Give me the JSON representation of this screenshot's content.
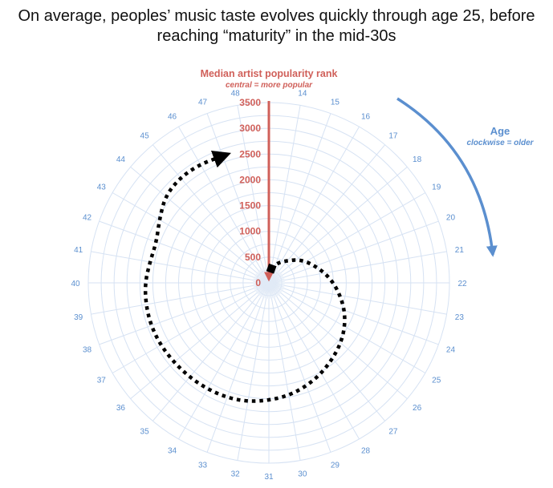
{
  "chart_data": {
    "type": "line",
    "subtype": "polar-spiral",
    "title": "On average, peoples’ music taste evolves quickly through age 25, before reaching “maturity” in the mid-30s",
    "radial_axis": {
      "label": "Median artist popularity rank",
      "sublabel": "central = more popular",
      "ticks": [
        0,
        500,
        1000,
        1500,
        2000,
        2500,
        3000,
        3500
      ],
      "range": [
        0,
        3500
      ],
      "color": "#d0605a"
    },
    "angular_axis": {
      "label": "Age",
      "sublabel": "clockwise = older",
      "ticks": [
        14,
        15,
        16,
        17,
        18,
        19,
        20,
        21,
        22,
        23,
        24,
        25,
        26,
        27,
        28,
        29,
        30,
        31,
        32,
        33,
        34,
        35,
        36,
        37,
        38,
        39,
        40,
        41,
        42,
        43,
        44,
        45,
        46,
        47,
        48
      ],
      "color": "#5b8fcf"
    },
    "grid": true,
    "series": [
      {
        "x": [
          14,
          15,
          16,
          17,
          18,
          19,
          20,
          21,
          22,
          23,
          24,
          25,
          26,
          27,
          28,
          29,
          30,
          31,
          32,
          33,
          34,
          35,
          36,
          37,
          38,
          39,
          40,
          41,
          42,
          43,
          44,
          45,
          46,
          47
        ],
        "values": [
          280,
          380,
          470,
          560,
          700,
          830,
          950,
          1100,
          1250,
          1400,
          1560,
          1700,
          1820,
          1920,
          2030,
          2130,
          2220,
          2280,
          2340,
          2370,
          2380,
          2390,
          2400,
          2420,
          2430,
          2420,
          2400,
          2340,
          2320,
          2450,
          2620,
          2670,
          2660,
          2620
        ],
        "style": "dotted-arrow",
        "color": "#000000"
      }
    ]
  }
}
